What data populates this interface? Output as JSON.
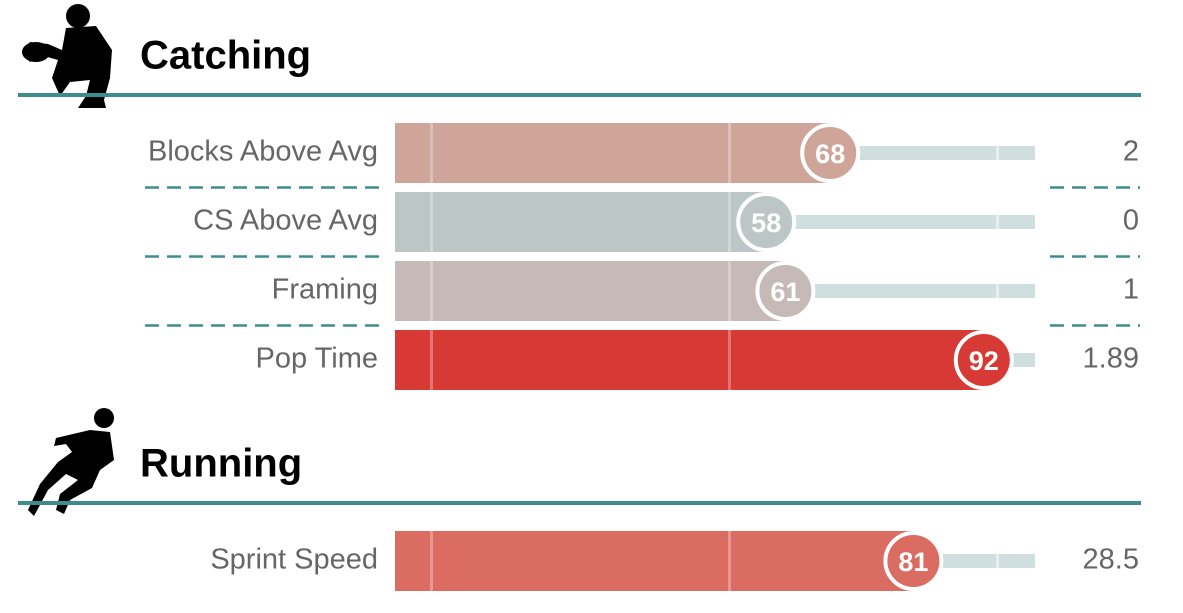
{
  "chart_data": [
    {
      "type": "bar",
      "title": "Catching",
      "categories": [
        "Blocks Above Avg",
        "CS Above Avg",
        "Framing",
        "Pop Time"
      ],
      "values": [
        68,
        58,
        61,
        92
      ],
      "colors": [
        "#cfa59a",
        "#bcc6c6",
        "#c5bab7",
        "#d73a34"
      ],
      "stat_values": [
        2,
        0,
        1,
        1.89
      ],
      "xlim": [
        0,
        100
      ]
    },
    {
      "type": "bar",
      "title": "Running",
      "categories": [
        "Sprint Speed"
      ],
      "values": [
        81
      ],
      "colors": [
        "#da6c61"
      ],
      "stat_values": [
        28.5
      ],
      "xlim": [
        0,
        100
      ]
    }
  ]
}
